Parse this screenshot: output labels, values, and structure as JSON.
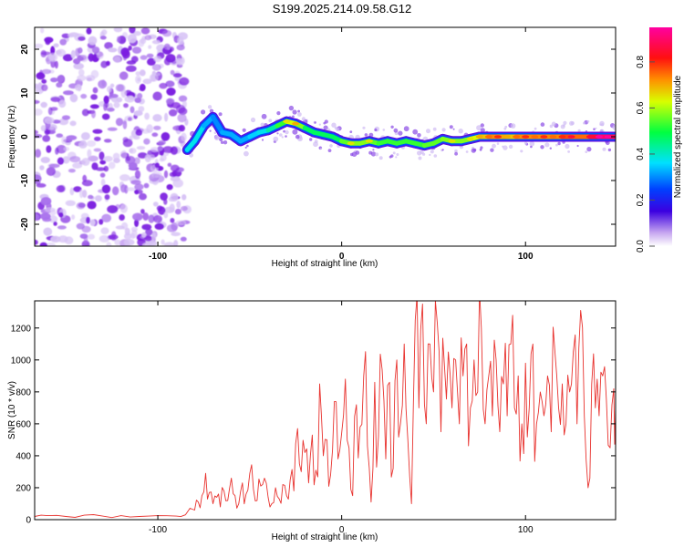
{
  "title": "S199.2025.214.09.58.G12",
  "chart_data": [
    {
      "type": "heatmap",
      "xlabel": "Height of straight line (km)",
      "ylabel": "Frequency (Hz)",
      "xlim": [
        -167,
        149
      ],
      "ylim": [
        -25,
        25
      ],
      "xticks": [
        -100,
        0,
        100
      ],
      "yticks": [
        20,
        10,
        0,
        -10,
        -20
      ],
      "colorbar": {
        "label": "Normalized spectral amplitude",
        "range": [
          0,
          0.95
        ],
        "ticks": [
          0.0,
          0.2,
          0.4,
          0.6,
          0.8
        ],
        "colormap": "rainbow (white at 0, magenta at max)"
      },
      "noise_region": {
        "x": [
          -167,
          -84
        ],
        "amplitude": "low"
      },
      "signal_track": [
        {
          "x": -84,
          "y": -3.0,
          "a": 0.35
        },
        {
          "x": -80,
          "y": -1.0,
          "a": 0.4
        },
        {
          "x": -75,
          "y": 2.5,
          "a": 0.35
        },
        {
          "x": -70,
          "y": 4.5,
          "a": 0.3
        },
        {
          "x": -65,
          "y": 1.0,
          "a": 0.3
        },
        {
          "x": -60,
          "y": 0.5,
          "a": 0.35
        },
        {
          "x": -55,
          "y": -1.0,
          "a": 0.3
        },
        {
          "x": -50,
          "y": 0.0,
          "a": 0.35
        },
        {
          "x": -45,
          "y": 1.0,
          "a": 0.35
        },
        {
          "x": -40,
          "y": 1.5,
          "a": 0.4
        },
        {
          "x": -35,
          "y": 2.5,
          "a": 0.45
        },
        {
          "x": -30,
          "y": 3.5,
          "a": 0.6
        },
        {
          "x": -25,
          "y": 3.0,
          "a": 0.65
        },
        {
          "x": -20,
          "y": 2.0,
          "a": 0.5
        },
        {
          "x": -15,
          "y": 1.0,
          "a": 0.45
        },
        {
          "x": -10,
          "y": 0.5,
          "a": 0.5
        },
        {
          "x": -5,
          "y": 0.0,
          "a": 0.45
        },
        {
          "x": 0,
          "y": -1.0,
          "a": 0.5
        },
        {
          "x": 5,
          "y": -1.5,
          "a": 0.6
        },
        {
          "x": 10,
          "y": -1.5,
          "a": 0.55
        },
        {
          "x": 15,
          "y": -1.0,
          "a": 0.6
        },
        {
          "x": 20,
          "y": -1.5,
          "a": 0.5
        },
        {
          "x": 25,
          "y": -1.0,
          "a": 0.55
        },
        {
          "x": 30,
          "y": -1.5,
          "a": 0.5
        },
        {
          "x": 35,
          "y": -1.0,
          "a": 0.55
        },
        {
          "x": 40,
          "y": -1.5,
          "a": 0.5
        },
        {
          "x": 45,
          "y": -2.0,
          "a": 0.55
        },
        {
          "x": 50,
          "y": -1.5,
          "a": 0.55
        },
        {
          "x": 55,
          "y": -0.5,
          "a": 0.55
        },
        {
          "x": 60,
          "y": -1.0,
          "a": 0.6
        },
        {
          "x": 65,
          "y": -1.0,
          "a": 0.55
        },
        {
          "x": 70,
          "y": -0.5,
          "a": 0.6
        },
        {
          "x": 75,
          "y": 0.0,
          "a": 0.65
        },
        {
          "x": 80,
          "y": 0.0,
          "a": 0.7
        },
        {
          "x": 85,
          "y": 0.0,
          "a": 0.75
        },
        {
          "x": 90,
          "y": 0.0,
          "a": 0.65
        },
        {
          "x": 95,
          "y": 0.0,
          "a": 0.7
        },
        {
          "x": 100,
          "y": 0.0,
          "a": 0.75
        },
        {
          "x": 105,
          "y": 0.0,
          "a": 0.7
        },
        {
          "x": 110,
          "y": 0.0,
          "a": 0.75
        },
        {
          "x": 115,
          "y": 0.0,
          "a": 0.7
        },
        {
          "x": 120,
          "y": 0.0,
          "a": 0.75
        },
        {
          "x": 125,
          "y": 0.0,
          "a": 0.8
        },
        {
          "x": 130,
          "y": 0.0,
          "a": 0.7
        },
        {
          "x": 135,
          "y": 0.0,
          "a": 0.8
        },
        {
          "x": 140,
          "y": 0.0,
          "a": 0.9
        },
        {
          "x": 145,
          "y": 0.0,
          "a": 0.9
        },
        {
          "x": 149,
          "y": 0.0,
          "a": 0.85
        }
      ]
    },
    {
      "type": "line",
      "xlabel": "Height of straight line (km)",
      "ylabel": "SNR (10 * v/v)",
      "xlim": [
        -167,
        149
      ],
      "ylim": [
        0,
        1370
      ],
      "xticks": [
        -100,
        0,
        100
      ],
      "yticks": [
        0,
        200,
        400,
        600,
        800,
        1000,
        1200
      ],
      "color": "#e8322e",
      "series": [
        {
          "points": [
            [
              -167,
              20
            ],
            [
              -160,
              25
            ],
            [
              -150,
              20
            ],
            [
              -140,
              28
            ],
            [
              -130,
              22
            ],
            [
              -120,
              25
            ],
            [
              -110,
              20
            ],
            [
              -100,
              25
            ],
            [
              -90,
              22
            ],
            [
              -85,
              30
            ],
            [
              -80,
              60
            ],
            [
              -78,
              110
            ],
            [
              -76,
              150
            ],
            [
              -74,
              290
            ],
            [
              -72,
              170
            ],
            [
              -70,
              100
            ],
            [
              -68,
              140
            ],
            [
              -66,
              80
            ],
            [
              -64,
              180
            ],
            [
              -62,
              120
            ],
            [
              -60,
              260
            ],
            [
              -58,
              150
            ],
            [
              -56,
              100
            ],
            [
              -54,
              230
            ],
            [
              -52,
              160
            ],
            [
              -50,
              290
            ],
            [
              -48,
              190
            ],
            [
              -46,
              120
            ],
            [
              -44,
              210
            ],
            [
              -42,
              260
            ],
            [
              -40,
              140
            ],
            [
              -38,
              100
            ],
            [
              -36,
              200
            ],
            [
              -34,
              130
            ],
            [
              -32,
              220
            ],
            [
              -30,
              150
            ],
            [
              -28,
              250
            ],
            [
              -26,
              180
            ],
            [
              -24,
              570
            ],
            [
              -22,
              300
            ],
            [
              -20,
              420
            ],
            [
              -18,
              230
            ],
            [
              -16,
              530
            ],
            [
              -14,
              310
            ],
            [
              -12,
              850
            ],
            [
              -10,
              400
            ],
            [
              -8,
              500
            ],
            [
              -6,
              280
            ],
            [
              -4,
              740
            ],
            [
              -2,
              380
            ],
            [
              0,
              540
            ],
            [
              2,
              880
            ],
            [
              4,
              450
            ],
            [
              6,
              150
            ],
            [
              8,
              720
            ],
            [
              10,
              580
            ],
            [
              12,
              900
            ],
            [
              14,
              460
            ],
            [
              16,
              110
            ],
            [
              18,
              860
            ],
            [
              20,
              520
            ],
            [
              22,
              940
            ],
            [
              24,
              380
            ],
            [
              26,
              860
            ],
            [
              28,
              320
            ],
            [
              30,
              1000
            ],
            [
              32,
              600
            ],
            [
              34,
              1100
            ],
            [
              36,
              500
            ],
            [
              38,
              100
            ],
            [
              40,
              1250
            ],
            [
              42,
              700
            ],
            [
              44,
              1350
            ],
            [
              46,
              600
            ],
            [
              48,
              1100
            ],
            [
              50,
              800
            ],
            [
              52,
              1230
            ],
            [
              54,
              550
            ],
            [
              56,
              950
            ],
            [
              58,
              1050
            ],
            [
              60,
              700
            ],
            [
              62,
              1000
            ],
            [
              64,
              600
            ],
            [
              66,
              900
            ],
            [
              68,
              1100
            ],
            [
              70,
              700
            ],
            [
              72,
              1000
            ],
            [
              74,
              800
            ],
            [
              76,
              1200
            ],
            [
              78,
              600
            ],
            [
              80,
              900
            ],
            [
              82,
              650
            ],
            [
              84,
              1000
            ],
            [
              86,
              550
            ],
            [
              88,
              850
            ],
            [
              90,
              650
            ],
            [
              92,
              1100
            ],
            [
              94,
              700
            ],
            [
              96,
              900
            ],
            [
              98,
              600
            ],
            [
              100,
              980
            ],
            [
              102,
              700
            ],
            [
              104,
              1100
            ],
            [
              106,
              600
            ],
            [
              108,
              800
            ],
            [
              110,
              650
            ],
            [
              112,
              900
            ],
            [
              114,
              550
            ],
            [
              116,
              1050
            ],
            [
              118,
              700
            ],
            [
              120,
              850
            ],
            [
              122,
              600
            ],
            [
              124,
              800
            ],
            [
              126,
              1050
            ],
            [
              128,
              600
            ],
            [
              130,
              1310
            ],
            [
              132,
              650
            ],
            [
              134,
              200
            ],
            [
              136,
              850
            ],
            [
              138,
              700
            ],
            [
              140,
              650
            ],
            [
              142,
              900
            ],
            [
              144,
              750
            ],
            [
              146,
              450
            ],
            [
              148,
              820
            ],
            [
              149,
              700
            ]
          ]
        }
      ]
    }
  ]
}
